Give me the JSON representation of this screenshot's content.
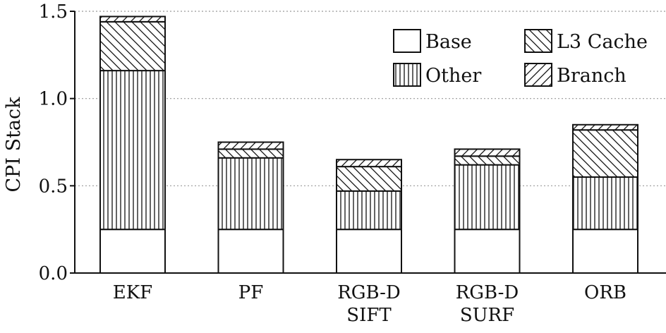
{
  "chart_data": {
    "type": "bar",
    "stacked": true,
    "ylabel": "CPI Stack",
    "ylim": [
      0,
      1.5
    ],
    "yticks": [
      0.0,
      0.5,
      1.0,
      1.5
    ],
    "ytick_labels": [
      "0.0",
      "0.5",
      "1.0",
      "1.5"
    ],
    "grid": "horizontal-dotted",
    "legend_position": "top-right",
    "categories": [
      [
        "EKF"
      ],
      [
        "PF"
      ],
      [
        "RGB-D",
        "SIFT"
      ],
      [
        "RGB-D",
        "SURF"
      ],
      [
        "ORB"
      ]
    ],
    "series": [
      {
        "name": "Base",
        "pattern": "empty",
        "values": [
          0.25,
          0.25,
          0.25,
          0.25,
          0.25
        ]
      },
      {
        "name": "Other",
        "pattern": "vertical",
        "values": [
          0.91,
          0.41,
          0.22,
          0.37,
          0.3
        ]
      },
      {
        "name": "L3 Cache",
        "pattern": "backslash",
        "values": [
          0.28,
          0.05,
          0.14,
          0.05,
          0.27
        ]
      },
      {
        "name": "Branch",
        "pattern": "slash",
        "values": [
          0.03,
          0.04,
          0.04,
          0.04,
          0.03
        ]
      }
    ],
    "colors": {
      "fill": "#ffffff",
      "stroke": "#111111",
      "grid": "#999999"
    }
  }
}
